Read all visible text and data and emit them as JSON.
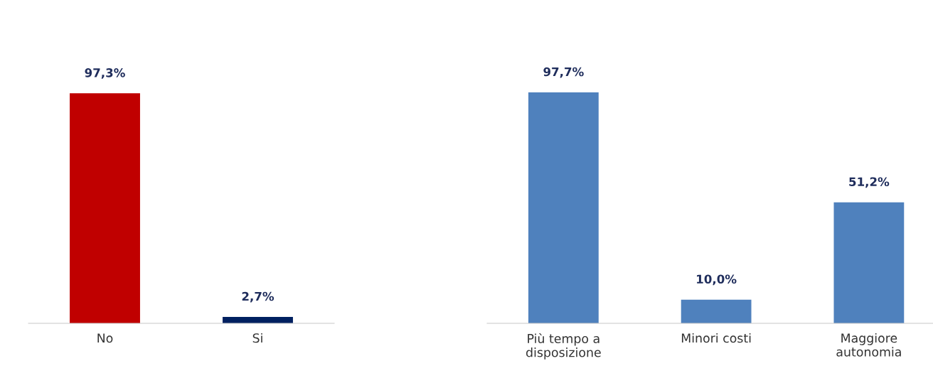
{
  "chart_data": [
    {
      "type": "bar",
      "categories": [
        "No",
        "Si"
      ],
      "values": [
        97.3,
        2.7
      ],
      "colors": [
        "#c00000",
        "#002060"
      ],
      "value_labels": [
        "97,3%",
        "2,7%"
      ],
      "grid": false,
      "legend": false
    },
    {
      "type": "bar",
      "categories": [
        "Più tempo a\ndisposizione",
        "Minori costi",
        "Maggiore\nautonomia"
      ],
      "values": [
        97.7,
        10.0,
        51.2
      ],
      "colors": [
        "#4f81bd",
        "#4f81bd",
        "#4f81bd"
      ],
      "value_labels": [
        "97,7%",
        "10,0%",
        "51,2%"
      ],
      "grid": false,
      "legend": false
    }
  ]
}
